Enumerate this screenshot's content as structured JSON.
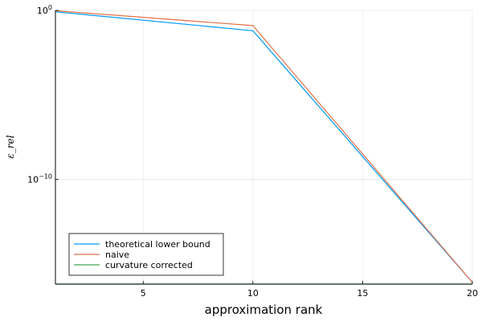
{
  "chart_data": {
    "type": "line",
    "xlabel": "approximation rank",
    "ylabel": "ε_rel",
    "xlim": [
      1,
      20
    ],
    "ylim_log10": [
      -16.2,
      0
    ],
    "y_scale": "log",
    "x_ticks": [
      5,
      10,
      15,
      20
    ],
    "y_ticks": [
      {
        "exp": 0,
        "base": "10",
        "sup": "0"
      },
      {
        "exp": -10,
        "base": "10",
        "sup": "−10"
      }
    ],
    "grid": true,
    "legend_position": "bottom-left",
    "series": [
      {
        "name": "theoretical lower bound",
        "color": "#009AFA",
        "x": [
          1,
          10,
          20
        ],
        "log10_y": [
          -0.08,
          -1.2,
          -16.1
        ]
      },
      {
        "name": "naive",
        "color": "#E36F47",
        "x": [
          1,
          10,
          20
        ],
        "log10_y": [
          -0.02,
          -0.9,
          -16.1
        ]
      },
      {
        "name": "curvature corrected",
        "color": "#3EA44E",
        "x": [
          1,
          10,
          20
        ],
        "log10_y": [
          -16.2,
          -16.2,
          -16.2
        ]
      }
    ]
  }
}
